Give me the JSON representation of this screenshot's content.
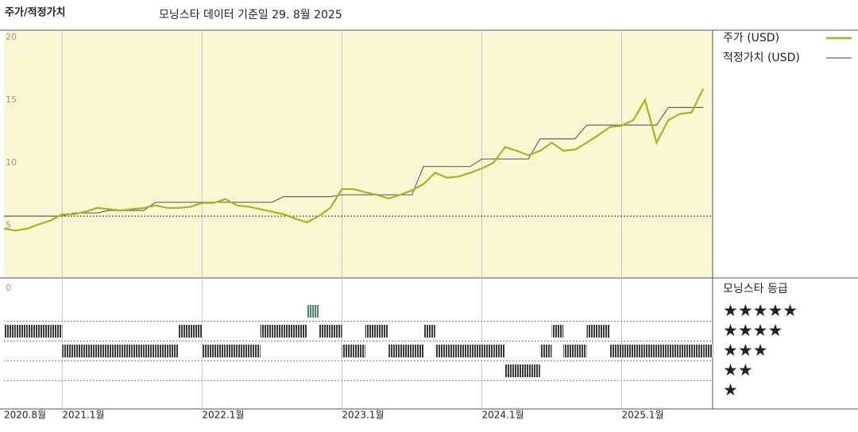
{
  "chart_data": {
    "type": "line",
    "title": "주가/적정가치",
    "subtitle": "모닝스타 데이터 기준일 29. 8월 2025",
    "x": [
      "2020-08",
      "2020-09",
      "2020-10",
      "2020-11",
      "2020-12",
      "2021-01",
      "2021-02",
      "2021-03",
      "2021-04",
      "2021-05",
      "2021-06",
      "2021-07",
      "2021-08",
      "2021-09",
      "2021-10",
      "2021-11",
      "2021-12",
      "2022-01",
      "2022-02",
      "2022-03",
      "2022-04",
      "2022-05",
      "2022-06",
      "2022-07",
      "2022-08",
      "2022-09",
      "2022-10",
      "2022-11",
      "2022-12",
      "2023-01",
      "2023-02",
      "2023-03",
      "2023-04",
      "2023-05",
      "2023-06",
      "2023-07",
      "2023-08",
      "2023-09",
      "2023-10",
      "2023-11",
      "2023-12",
      "2024-01",
      "2024-02",
      "2024-03",
      "2024-04",
      "2024-05",
      "2024-06",
      "2024-07",
      "2024-08",
      "2024-09",
      "2024-10",
      "2024-11",
      "2024-12",
      "2025-01",
      "2025-02",
      "2025-03",
      "2025-04",
      "2025-05",
      "2025-06",
      "2025-07",
      "2025-08"
    ],
    "series": [
      {
        "name": "주가 (USD)",
        "color": "#a6b51c",
        "values": [
          4.75,
          4.6,
          4.75,
          5.1,
          5.4,
          5.9,
          5.9,
          6.1,
          6.4,
          6.3,
          6.2,
          6.3,
          6.4,
          6.6,
          6.4,
          6.4,
          6.5,
          6.8,
          6.8,
          7.1,
          6.6,
          6.5,
          6.3,
          6.1,
          5.9,
          5.55,
          5.25,
          5.75,
          6.4,
          7.9,
          7.9,
          7.65,
          7.45,
          7.15,
          7.45,
          7.8,
          8.3,
          9.2,
          8.8,
          8.9,
          9.2,
          9.55,
          10.0,
          11.25,
          10.95,
          10.6,
          10.95,
          11.6,
          10.95,
          11.05,
          11.6,
          12.2,
          12.85,
          12.95,
          13.4,
          15.0,
          11.6,
          13.4,
          13.9,
          14.0,
          15.9
        ]
      },
      {
        "name": "적정가치 (USD)",
        "color": "#666666",
        "values": [
          5.75,
          5.75,
          5.75,
          5.75,
          5.75,
          5.75,
          6.0,
          6.0,
          6.0,
          6.2,
          6.2,
          6.2,
          6.2,
          6.85,
          6.85,
          6.85,
          6.85,
          6.85,
          6.85,
          6.85,
          6.85,
          6.85,
          6.85,
          6.85,
          7.3,
          7.3,
          7.3,
          7.3,
          7.3,
          7.45,
          7.45,
          7.45,
          7.45,
          7.45,
          7.45,
          7.45,
          9.7,
          9.7,
          9.7,
          9.7,
          9.7,
          10.3,
          10.3,
          10.3,
          10.3,
          10.3,
          11.9,
          11.9,
          11.9,
          11.9,
          13.0,
          13.0,
          13.0,
          13.0,
          13.0,
          13.0,
          13.0,
          14.4,
          14.4,
          14.4,
          14.4
        ]
      }
    ],
    "ylim": [
      0,
      20.5
    ],
    "yticks": [
      0,
      5,
      10,
      15,
      20
    ],
    "reference_line": 5.75,
    "xticks": [
      {
        "value": "2020-08",
        "label": "2020.8월"
      },
      {
        "value": "2021-01",
        "label": "2021.1월"
      },
      {
        "value": "2022-01",
        "label": "2022.1월"
      },
      {
        "value": "2023-01",
        "label": "2023.1월"
      },
      {
        "value": "2024-01",
        "label": "2024.1월"
      },
      {
        "value": "2025-01",
        "label": "2025.1월"
      }
    ],
    "rating_title": "모닝스타 등급",
    "ratings": [
      4,
      4,
      4,
      4,
      4,
      3,
      3,
      3,
      3,
      3,
      3,
      3,
      3,
      3,
      3,
      4,
      4,
      3,
      3,
      3,
      3,
      3,
      4,
      4,
      4,
      4,
      5,
      4,
      4,
      3,
      3,
      4,
      4,
      3,
      3,
      3,
      4,
      3,
      3,
      3,
      3,
      3,
      3,
      2,
      2,
      2,
      3,
      4,
      3,
      3,
      4,
      4,
      3,
      3,
      3,
      3,
      3,
      3,
      3,
      3,
      3
    ],
    "rating_ticks": [
      {
        "value": 5,
        "label": "★★★★★"
      },
      {
        "value": 4,
        "label": "★★★★"
      },
      {
        "value": 3,
        "label": "★★★"
      },
      {
        "value": 2,
        "label": "★★"
      },
      {
        "value": 1,
        "label": "★"
      }
    ],
    "rating_color": "#3a3a3a",
    "top_rating_color": "#3d8a66",
    "background": "#faf6d2"
  }
}
